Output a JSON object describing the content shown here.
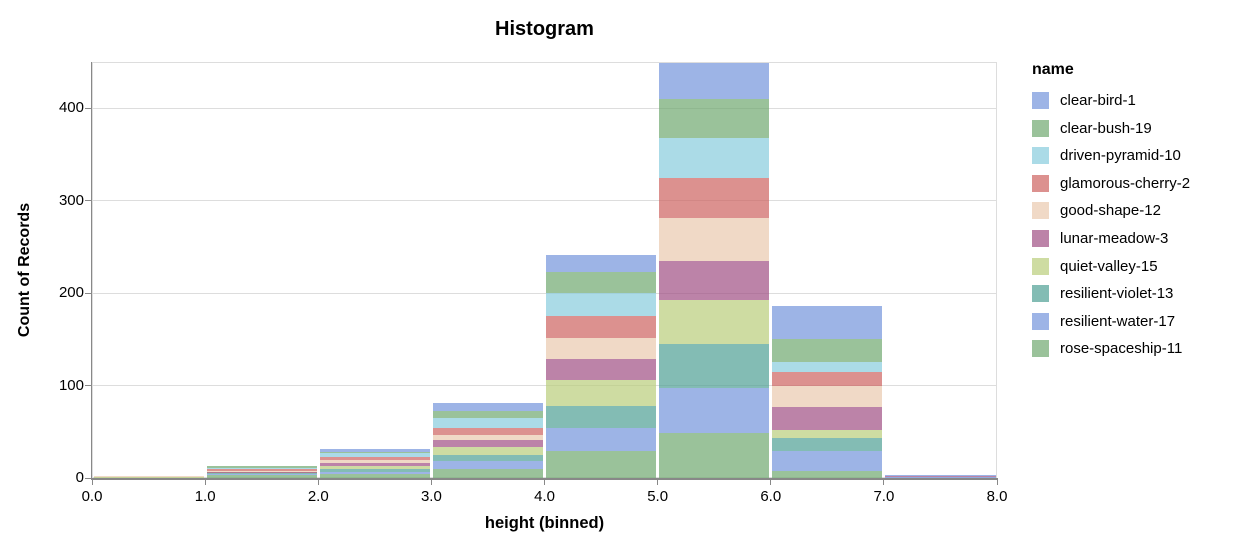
{
  "title": "Histogram",
  "x_axis": {
    "title": "height (binned)",
    "tick_labels": [
      "0.0",
      "1.0",
      "2.0",
      "3.0",
      "4.0",
      "5.0",
      "6.0",
      "7.0",
      "8.0"
    ],
    "tick_values": [
      0,
      1,
      2,
      3,
      4,
      5,
      6,
      7,
      8
    ]
  },
  "y_axis": {
    "title": "Count of Records",
    "tick_labels": [
      "0",
      "100",
      "200",
      "300",
      "400"
    ],
    "tick_values": [
      0,
      100,
      200,
      300,
      400
    ]
  },
  "legend": {
    "title": "name"
  },
  "colors": {
    "gridline": "#dddddd",
    "axis_line": "#888888",
    "view_border": "#dddddd"
  },
  "chart_data": {
    "type": "bar",
    "subtype": "stacked-histogram",
    "title": "Histogram",
    "xlabel": "height (binned)",
    "ylabel": "Count of Records",
    "x_domain": [
      0,
      8
    ],
    "y_domain": [
      0,
      450
    ],
    "bin_edges": [
      0,
      1,
      2,
      3,
      4,
      5,
      6,
      7,
      8
    ],
    "grid": true,
    "legend_position": "right",
    "bar_opacity": 0.7,
    "stack_order": "bottom-to-top is reverse of series list",
    "bin_totals": [
      2,
      13,
      31,
      81,
      241,
      449,
      186,
      3
    ],
    "series": [
      {
        "name": "clear-bird-1",
        "color": "#7494db",
        "values": [
          0,
          0,
          3,
          9,
          18,
          39,
          36,
          1
        ]
      },
      {
        "name": "clear-bush-19",
        "color": "#6fa86f",
        "values": [
          0,
          2,
          1,
          7,
          23,
          42,
          24,
          0
        ]
      },
      {
        "name": "driven-pyramid-10",
        "color": "#87ccdd",
        "values": [
          0,
          1,
          4,
          11,
          25,
          43,
          11,
          0
        ]
      },
      {
        "name": "glamorous-cherry-2",
        "color": "#cd6360",
        "values": [
          0,
          2,
          3,
          7,
          24,
          44,
          16,
          0
        ]
      },
      {
        "name": "good-shape-12",
        "color": "#eac9ae",
        "values": [
          1,
          1,
          4,
          6,
          22,
          46,
          22,
          0
        ]
      },
      {
        "name": "lunar-meadow-3",
        "color": "#9f4f83",
        "values": [
          0,
          1,
          3,
          7,
          23,
          42,
          25,
          1
        ]
      },
      {
        "name": "quiet-valley-15",
        "color": "#b9cd7a",
        "values": [
          1,
          1,
          3,
          9,
          28,
          48,
          9,
          0
        ]
      },
      {
        "name": "resilient-violet-13",
        "color": "#4f9f94",
        "values": [
          0,
          1,
          3,
          7,
          24,
          48,
          14,
          0
        ]
      },
      {
        "name": "resilient-water-17",
        "color": "#7494db",
        "values": [
          0,
          1,
          3,
          8,
          25,
          48,
          21,
          1
        ]
      },
      {
        "name": "rose-spaceship-11",
        "color": "#6fa86f",
        "values": [
          0,
          3,
          4,
          10,
          29,
          49,
          8,
          0
        ]
      }
    ]
  }
}
